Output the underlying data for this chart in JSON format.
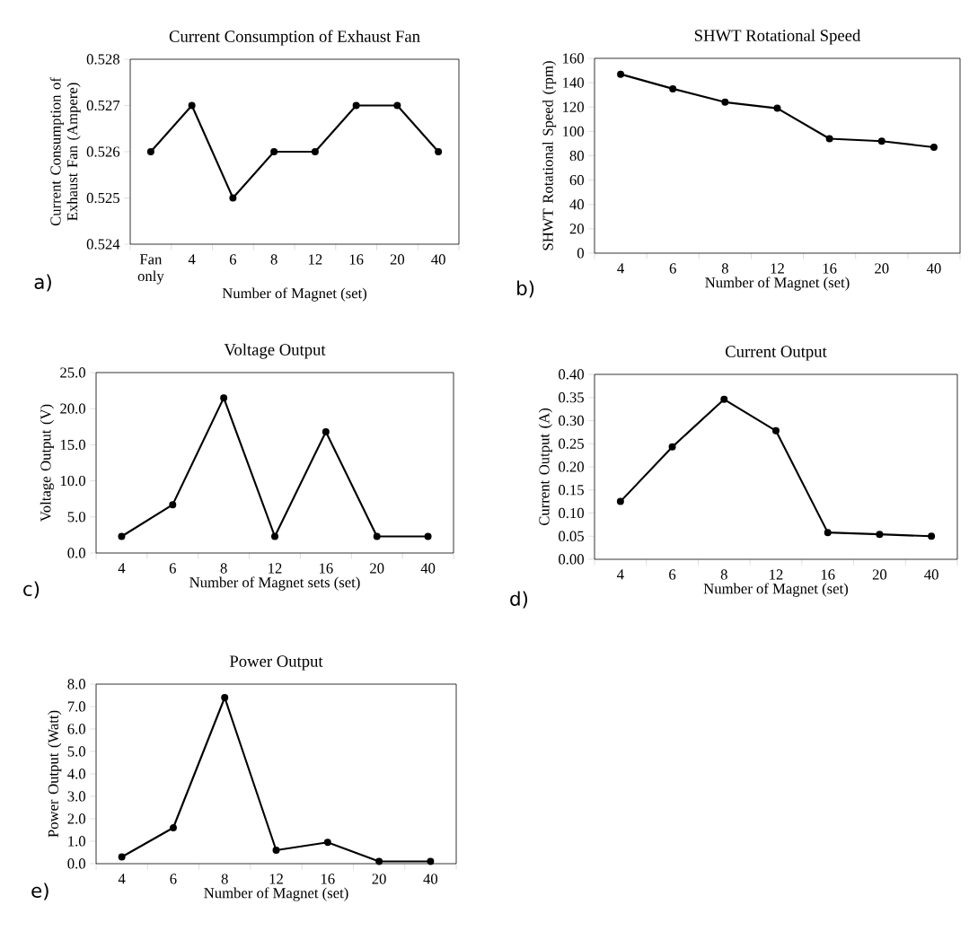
{
  "chart_data": [
    {
      "type": "line",
      "title": "Current Consumption of Exhaust Fan",
      "xlabel": "Number of Magnet (set)",
      "ylabel": "Current Consumption of Exhaust Fan (Ampere)",
      "categories": [
        "Fan only",
        "4",
        "6",
        "8",
        "12",
        "16",
        "20",
        "40"
      ],
      "values": [
        0.526,
        0.527,
        0.525,
        0.526,
        0.526,
        0.527,
        0.527,
        0.526
      ],
      "color": "#000000",
      "marker": "circle",
      "ylim": [
        0.524,
        0.528
      ],
      "yticks": [
        0.524,
        0.525,
        0.526,
        0.527,
        0.528
      ],
      "annotations": [
        "a)"
      ]
    },
    {
      "type": "line",
      "title": "SHWT Rotational Speed",
      "xlabel": "Number of Magnet (set)",
      "ylabel": "SHWT Rotational Speed (rpm)",
      "categories": [
        "4",
        "6",
        "8",
        "12",
        "16",
        "20",
        "40"
      ],
      "values": [
        147,
        135,
        124,
        119,
        94,
        92,
        87
      ],
      "color": "#000000",
      "marker": "circle",
      "ylim": [
        0,
        160
      ],
      "yticks": [
        0,
        20,
        40,
        60,
        80,
        100,
        120,
        140,
        160
      ],
      "annotations": [
        "b)"
      ]
    },
    {
      "type": "line",
      "title": "Voltage Output",
      "xlabel": "Number of Magnet sets (set)",
      "ylabel": "Voltage Output (V)",
      "categories": [
        "4",
        "6",
        "8",
        "12",
        "16",
        "20",
        "40"
      ],
      "values": [
        2.3,
        6.7,
        21.5,
        2.3,
        16.8,
        2.3,
        2.3
      ],
      "color": "#000000",
      "marker": "circle",
      "ylim": [
        0,
        25
      ],
      "yticks": [
        {
          "value": 0,
          "label": "0.0"
        },
        {
          "value": 5,
          "label": "5.0"
        },
        {
          "value": 10,
          "label": "10.0"
        },
        {
          "value": 15,
          "label": "15.0"
        },
        {
          "value": 20,
          "label": "20.0"
        },
        {
          "value": 25,
          "label": "25.0"
        }
      ],
      "annotations": [
        "c)"
      ]
    },
    {
      "type": "line",
      "title": "Current Output",
      "xlabel": "Number of Magnet (set)",
      "ylabel": "Current Output (A)",
      "categories": [
        "4",
        "6",
        "8",
        "12",
        "16",
        "20",
        "40"
      ],
      "values": [
        0.125,
        0.243,
        0.346,
        0.278,
        0.058,
        0.054,
        0.05
      ],
      "color": "#000000",
      "marker": "circle",
      "ylim": [
        0,
        0.4
      ],
      "yticks": [
        {
          "value": 0,
          "label": "0.00"
        },
        0.05,
        {
          "value": 0.1,
          "label": "0.10"
        },
        0.15,
        {
          "value": 0.2,
          "label": "0.20"
        },
        0.25,
        {
          "value": 0.3,
          "label": "0.30"
        },
        0.35,
        {
          "value": 0.4,
          "label": "0.40"
        }
      ],
      "annotations": [
        "d)"
      ]
    },
    {
      "type": "line",
      "title": "Power Output",
      "xlabel": "Number of Magnet (set)",
      "ylabel": "Power Output (Watt)",
      "categories": [
        "4",
        "6",
        "8",
        "12",
        "16",
        "20",
        "40"
      ],
      "values": [
        0.3,
        1.6,
        7.4,
        0.6,
        0.95,
        0.1,
        0.1
      ],
      "color": "#000000",
      "marker": "circle",
      "ylim": [
        0,
        8
      ],
      "yticks": [
        {
          "value": 0,
          "label": "0.0"
        },
        {
          "value": 1,
          "label": "1.0"
        },
        {
          "value": 2,
          "label": "2.0"
        },
        {
          "value": 3,
          "label": "3.0"
        },
        {
          "value": 4,
          "label": "4.0"
        },
        {
          "value": 5,
          "label": "5.0"
        },
        {
          "value": 6,
          "label": "6.0"
        },
        {
          "value": 7,
          "label": "7.0"
        },
        {
          "value": 8,
          "label": "8.0"
        }
      ],
      "annotations": [
        "e)"
      ]
    }
  ]
}
